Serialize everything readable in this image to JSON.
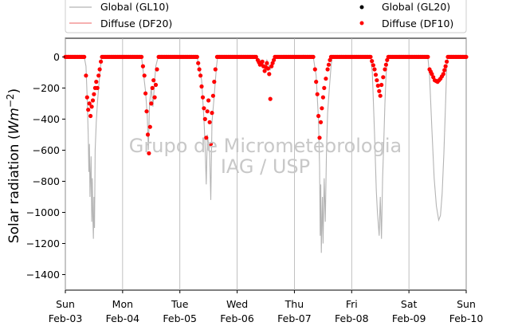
{
  "chart_data": {
    "type": "line",
    "ylabel_main": "Solar radiation (",
    "ylabel_unit": "Wm",
    "ylabel_exp": "−2",
    "ylabel_close": ")",
    "ylim": [
      -1500,
      120
    ],
    "yticks": [
      0,
      -200,
      -400,
      -600,
      -800,
      -1000,
      -1200,
      -1400
    ],
    "xlim": [
      0,
      7
    ],
    "xticks": [
      {
        "x": 0,
        "day": "Sun",
        "date": "Feb-03"
      },
      {
        "x": 1,
        "day": "Mon",
        "date": "Feb-04"
      },
      {
        "x": 2,
        "day": "Tue",
        "date": "Feb-05"
      },
      {
        "x": 3,
        "day": "Wed",
        "date": "Feb-06"
      },
      {
        "x": 4,
        "day": "Thu",
        "date": "Feb-07"
      },
      {
        "x": 5,
        "day": "Fri",
        "date": "Feb-08"
      },
      {
        "x": 6,
        "day": "Sat",
        "date": "Feb-09"
      },
      {
        "x": 7,
        "day": "Sun",
        "date": "Feb-10"
      }
    ],
    "grid": "vertical",
    "legend_placement": "top, above plot, two columns",
    "watermark": [
      "Grupo de Micrometeorologia",
      "IAG / USP"
    ],
    "series": [
      {
        "name": "Global (GL10)",
        "style": "line",
        "color": "#b4b4b4",
        "points": [
          [
            0,
            0
          ],
          [
            0.33,
            0
          ],
          [
            0.36,
            -60
          ],
          [
            0.38,
            -250
          ],
          [
            0.4,
            -500
          ],
          [
            0.41,
            -740
          ],
          [
            0.42,
            -560
          ],
          [
            0.43,
            -900
          ],
          [
            0.45,
            -640
          ],
          [
            0.46,
            -1060
          ],
          [
            0.47,
            -780
          ],
          [
            0.48,
            -1030
          ],
          [
            0.49,
            -1170
          ],
          [
            0.5,
            -900
          ],
          [
            0.51,
            -1100
          ],
          [
            0.52,
            -600
          ],
          [
            0.54,
            -420
          ],
          [
            0.56,
            -300
          ],
          [
            0.58,
            -200
          ],
          [
            0.6,
            -120
          ],
          [
            0.62,
            -40
          ],
          [
            0.64,
            0
          ],
          [
            1.33,
            0
          ],
          [
            1.4,
            -220
          ],
          [
            1.43,
            -380
          ],
          [
            1.45,
            -600
          ],
          [
            1.47,
            -300
          ],
          [
            1.5,
            -200
          ],
          [
            1.53,
            -320
          ],
          [
            1.56,
            -150
          ],
          [
            1.58,
            -60
          ],
          [
            1.62,
            0
          ],
          [
            2.3,
            0
          ],
          [
            2.38,
            -150
          ],
          [
            2.42,
            -400
          ],
          [
            2.44,
            -560
          ],
          [
            2.46,
            -820
          ],
          [
            2.48,
            -500
          ],
          [
            2.52,
            -620
          ],
          [
            2.54,
            -920
          ],
          [
            2.56,
            -420
          ],
          [
            2.6,
            -250
          ],
          [
            2.64,
            -60
          ],
          [
            2.66,
            0
          ],
          [
            3.33,
            0
          ],
          [
            3.4,
            -20
          ],
          [
            3.48,
            -60
          ],
          [
            3.52,
            -20
          ],
          [
            3.58,
            -80
          ],
          [
            3.62,
            -20
          ],
          [
            3.66,
            0
          ],
          [
            4.33,
            0
          ],
          [
            4.38,
            -120
          ],
          [
            4.42,
            -400
          ],
          [
            4.44,
            -700
          ],
          [
            4.45,
            -1150
          ],
          [
            4.46,
            -820
          ],
          [
            4.47,
            -1260
          ],
          [
            4.49,
            -900
          ],
          [
            4.5,
            -1200
          ],
          [
            4.52,
            -780
          ],
          [
            4.54,
            -1060
          ],
          [
            4.56,
            -600
          ],
          [
            4.58,
            -360
          ],
          [
            4.61,
            -200
          ],
          [
            4.64,
            -60
          ],
          [
            4.66,
            0
          ],
          [
            5.33,
            0
          ],
          [
            5.36,
            -100
          ],
          [
            5.4,
            -500
          ],
          [
            5.43,
            -860
          ],
          [
            5.45,
            -1000
          ],
          [
            5.48,
            -1150
          ],
          [
            5.5,
            -900
          ],
          [
            5.52,
            -1170
          ],
          [
            5.54,
            -780
          ],
          [
            5.56,
            -560
          ],
          [
            5.58,
            -300
          ],
          [
            5.6,
            -120
          ],
          [
            5.62,
            -20
          ],
          [
            5.64,
            0
          ],
          [
            6.33,
            0
          ],
          [
            6.36,
            -120
          ],
          [
            6.4,
            -460
          ],
          [
            6.44,
            -780
          ],
          [
            6.48,
            -960
          ],
          [
            6.52,
            -1050
          ],
          [
            6.55,
            -1020
          ],
          [
            6.58,
            -880
          ],
          [
            6.61,
            -620
          ],
          [
            6.64,
            -300
          ],
          [
            6.66,
            -60
          ],
          [
            6.68,
            0
          ],
          [
            7,
            0
          ]
        ]
      },
      {
        "name": "Diffuse (DF20)",
        "style": "line",
        "color": "#f08080",
        "points": []
      },
      {
        "name": "Global (GL20)",
        "style": "dots",
        "color": "#000000",
        "points": []
      },
      {
        "name": "Diffuse (DF10)",
        "style": "dots",
        "color": "#ff0000",
        "points": [
          [
            0,
            0
          ],
          [
            0.33,
            0
          ],
          [
            0.36,
            -120
          ],
          [
            0.38,
            -260
          ],
          [
            0.4,
            -340
          ],
          [
            0.42,
            -300
          ],
          [
            0.44,
            -380
          ],
          [
            0.46,
            -320
          ],
          [
            0.48,
            -280
          ],
          [
            0.5,
            -240
          ],
          [
            0.52,
            -200
          ],
          [
            0.54,
            -160
          ],
          [
            0.56,
            -200
          ],
          [
            0.58,
            -120
          ],
          [
            0.6,
            -80
          ],
          [
            0.62,
            -30
          ],
          [
            0.64,
            0
          ],
          [
            0.8,
            0
          ],
          [
            1.33,
            0
          ],
          [
            1.38,
            -120
          ],
          [
            1.42,
            -350
          ],
          [
            1.44,
            -500
          ],
          [
            1.46,
            -620
          ],
          [
            1.48,
            -450
          ],
          [
            1.5,
            -300
          ],
          [
            1.52,
            -200
          ],
          [
            1.54,
            -150
          ],
          [
            1.56,
            -260
          ],
          [
            1.58,
            -180
          ],
          [
            1.6,
            -80
          ],
          [
            1.63,
            0
          ],
          [
            1.8,
            0
          ],
          [
            2.3,
            0
          ],
          [
            2.36,
            -120
          ],
          [
            2.4,
            -260
          ],
          [
            2.44,
            -400
          ],
          [
            2.46,
            -520
          ],
          [
            2.48,
            -350
          ],
          [
            2.5,
            -280
          ],
          [
            2.52,
            -420
          ],
          [
            2.54,
            -560
          ],
          [
            2.56,
            -360
          ],
          [
            2.58,
            -250
          ],
          [
            2.6,
            -160
          ],
          [
            2.62,
            -80
          ],
          [
            2.65,
            0
          ],
          [
            2.8,
            0
          ],
          [
            3.33,
            0
          ],
          [
            3.36,
            -20
          ],
          [
            3.4,
            -50
          ],
          [
            3.44,
            -30
          ],
          [
            3.48,
            -90
          ],
          [
            3.52,
            -40
          ],
          [
            3.56,
            -110
          ],
          [
            3.58,
            -270
          ],
          [
            3.6,
            -60
          ],
          [
            3.64,
            -20
          ],
          [
            3.66,
            0
          ],
          [
            3.8,
            0
          ],
          [
            4.33,
            0
          ],
          [
            4.36,
            -80
          ],
          [
            4.4,
            -240
          ],
          [
            4.42,
            -380
          ],
          [
            4.44,
            -520
          ],
          [
            4.46,
            -420
          ],
          [
            4.48,
            -330
          ],
          [
            4.5,
            -260
          ],
          [
            4.52,
            -200
          ],
          [
            4.55,
            -140
          ],
          [
            4.58,
            -80
          ],
          [
            4.62,
            -20
          ],
          [
            4.64,
            0
          ],
          [
            4.8,
            0
          ],
          [
            5.33,
            0
          ],
          [
            5.4,
            -80
          ],
          [
            5.44,
            -150
          ],
          [
            5.48,
            -220
          ],
          [
            5.5,
            -250
          ],
          [
            5.52,
            -180
          ],
          [
            5.55,
            -130
          ],
          [
            5.58,
            -80
          ],
          [
            5.62,
            -20
          ],
          [
            5.64,
            0
          ],
          [
            5.8,
            0
          ],
          [
            6.33,
            0
          ],
          [
            6.36,
            -80
          ],
          [
            6.4,
            -110
          ],
          [
            6.45,
            -150
          ],
          [
            6.5,
            -160
          ],
          [
            6.55,
            -140
          ],
          [
            6.6,
            -110
          ],
          [
            6.64,
            -60
          ],
          [
            6.68,
            0
          ],
          [
            6.85,
            0
          ],
          [
            7,
            0
          ]
        ]
      }
    ]
  }
}
